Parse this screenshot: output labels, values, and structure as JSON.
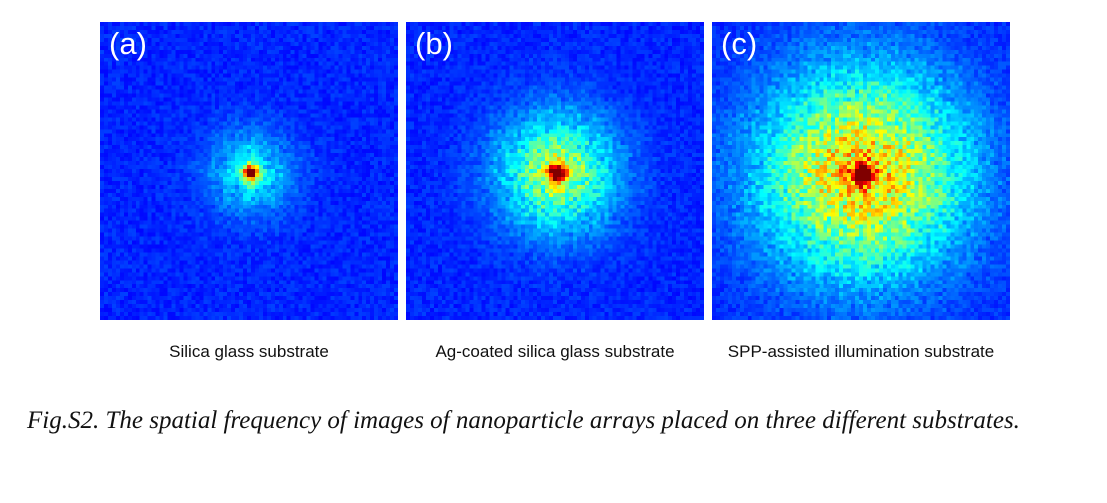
{
  "panels": [
    {
      "id": "a",
      "letter": "(a)",
      "caption": "Silica glass substrate",
      "spread": 0.1,
      "peak_halo": 0.3,
      "seed": 11
    },
    {
      "id": "b",
      "letter": "(b)",
      "caption": "Ag-coated silica glass substrate",
      "spread": 0.14,
      "peak_halo": 0.55,
      "seed": 23
    },
    {
      "id": "c",
      "letter": "(c)",
      "caption": "SPP-assisted illumination substrate",
      "spread": 0.24,
      "peak_halo": 0.75,
      "seed": 37
    }
  ],
  "figure_caption": "Fig.S2. The spatial frequency of images of nanoparticle arrays placed on three different substrates.",
  "colormap": "jet"
}
